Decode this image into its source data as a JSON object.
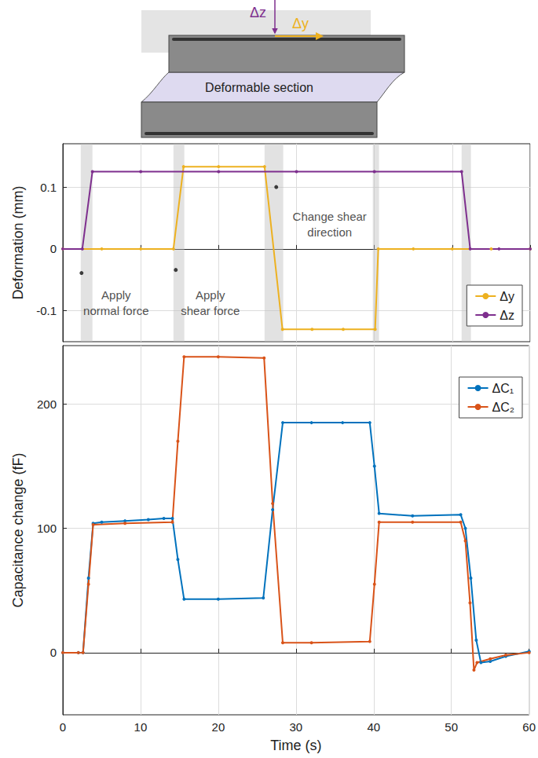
{
  "diagram": {
    "normal_label": "Δz",
    "shear_label": "Δy",
    "section_label": "Deformable section"
  },
  "chart_data": [
    {
      "type": "line",
      "y_label": "Deformation (mm)",
      "xlim": [
        0,
        60
      ],
      "xticks": [
        0,
        10,
        20,
        30,
        40,
        50,
        60
      ],
      "ylim": [
        -0.15,
        0.17
      ],
      "yticks": [
        -0.1,
        0,
        0.1
      ],
      "grid": true,
      "legend": "lower right",
      "tick_labels": "y",
      "shaded_x": [
        [
          2.3,
          3.8
        ],
        [
          14.2,
          15.6
        ],
        [
          25.9,
          28.3
        ],
        [
          39.8,
          40.6
        ],
        [
          51.2,
          52.4
        ]
      ],
      "annotations": [
        {
          "text": "Apply\nnormal force",
          "x": 2.4,
          "y": -0.039
        },
        {
          "text": "Apply\nshear force",
          "x": 14.5,
          "y": -0.034
        },
        {
          "text": "Change shear\ndirection",
          "x": 27.4,
          "y": 0.1
        }
      ],
      "series": [
        {
          "name": "Δy",
          "color": "#EDB120",
          "marker": "circle",
          "x": [
            0,
            5,
            10,
            14.2,
            15.5,
            20,
            25.9,
            28.2,
            32,
            36,
            40.1,
            40.5,
            45,
            50,
            55,
            60
          ],
          "values": [
            0,
            0,
            0,
            0,
            0.133,
            0.133,
            0.133,
            -0.13,
            -0.13,
            -0.13,
            -0.13,
            0,
            0,
            0,
            0,
            0
          ]
        },
        {
          "name": "Δz",
          "color": "#7E2F8E",
          "marker": "circle",
          "x": [
            0,
            2.5,
            3.8,
            10,
            20,
            30,
            40,
            51.2,
            52.3,
            56,
            60
          ],
          "values": [
            0,
            0,
            0.125,
            0.125,
            0.125,
            0.125,
            0.125,
            0.125,
            0,
            0,
            0
          ]
        }
      ]
    },
    {
      "type": "line",
      "x_label": "Time (s)",
      "y_label": "Capacitance change (fF)",
      "xlim": [
        0,
        60
      ],
      "xticks": [
        0,
        10,
        20,
        30,
        40,
        50,
        60
      ],
      "ylim": [
        -50,
        247
      ],
      "yticks": [
        0,
        100,
        200
      ],
      "grid": true,
      "legend": "upper right",
      "series": [
        {
          "name": "ΔC₁",
          "color": "#0072BD",
          "marker": "circle",
          "x": [
            0,
            2,
            2.6,
            3.3,
            3.9,
            5,
            8,
            11,
            13,
            14.1,
            14.8,
            15.6,
            20,
            25.8,
            27,
            28.3,
            32,
            36,
            39.5,
            40.1,
            40.7,
            45,
            51.2,
            51.8,
            52.5,
            53.2,
            53.8,
            55,
            57,
            60
          ],
          "values": [
            0,
            0,
            0,
            60,
            104,
            105,
            106,
            107,
            108,
            108,
            75,
            43,
            43,
            44,
            115,
            185,
            185,
            185,
            185,
            150,
            112,
            110,
            111,
            100,
            60,
            10,
            -8,
            -7,
            -3,
            1
          ]
        },
        {
          "name": "ΔC₂",
          "color": "#D95319",
          "marker": "circle",
          "x": [
            0,
            2,
            2.6,
            3.3,
            3.9,
            8,
            14.1,
            14.8,
            15.6,
            20,
            25.9,
            27,
            28.3,
            32,
            39.5,
            40.1,
            40.7,
            45,
            51.2,
            51.8,
            52.4,
            52.9,
            53.3,
            55,
            57,
            60
          ],
          "values": [
            0,
            0,
            0,
            55,
            103,
            104,
            105,
            170,
            238,
            238,
            237,
            120,
            8,
            8,
            9,
            55,
            105,
            105,
            105,
            90,
            40,
            -14,
            -8,
            -5,
            -2,
            0
          ]
        }
      ]
    }
  ]
}
